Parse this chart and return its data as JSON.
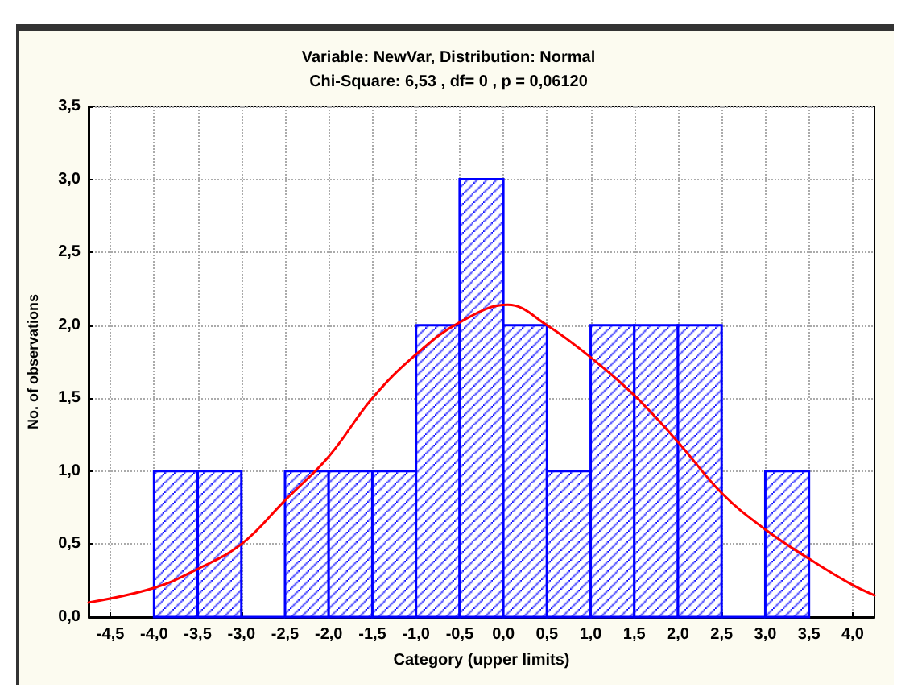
{
  "chart_data": {
    "type": "histogram",
    "title": "Variable: NewVar, Distribution: Normal",
    "subtitle": "Chi-Square: 6,53 , df= 0 , p = 0,06120",
    "xlabel": "Category (upper limits)",
    "ylabel": "No. of observations",
    "bins": [
      -4.0,
      -3.5,
      -3.0,
      -2.5,
      -2.0,
      -1.5,
      -1.0,
      -0.5,
      0.0,
      0.5,
      1.0,
      1.5,
      2.0,
      2.5,
      3.0,
      3.5
    ],
    "values": [
      1,
      1,
      0,
      1,
      1,
      1,
      2,
      3,
      2,
      1,
      2,
      2,
      2,
      0,
      1
    ],
    "color": "#0000ff",
    "series": [
      {
        "type": "line",
        "color": "#ff0000",
        "x": [
          -4.75,
          -4.0,
          -3.5,
          -3.0,
          -2.5,
          -2.0,
          -1.5,
          -1.0,
          -0.5,
          0.05,
          0.5,
          1.0,
          1.5,
          2.0,
          2.5,
          3.0,
          3.5,
          4.0,
          4.25
        ],
        "values": [
          0.1,
          0.2,
          0.33,
          0.5,
          0.8,
          1.1,
          1.5,
          1.8,
          2.02,
          2.14,
          2.0,
          1.78,
          1.52,
          1.2,
          0.85,
          0.6,
          0.4,
          0.22,
          0.15
        ]
      }
    ],
    "xlim": [
      -4.75,
      4.25
    ],
    "xticks": [
      {
        "value": -4.5,
        "label": "-4,5"
      },
      {
        "value": -4.0,
        "label": "-4,0"
      },
      {
        "value": -3.5,
        "label": "-3,5"
      },
      {
        "value": -3.0,
        "label": "-3,0"
      },
      {
        "value": -2.5,
        "label": "-2,5"
      },
      {
        "value": -2.0,
        "label": "-2,0"
      },
      {
        "value": -1.5,
        "label": "-1,5"
      },
      {
        "value": -1.0,
        "label": "-1,0"
      },
      {
        "value": -0.5,
        "label": "-0,5"
      },
      {
        "value": 0.0,
        "label": "0,0"
      },
      {
        "value": 0.5,
        "label": "0,5"
      },
      {
        "value": 1.0,
        "label": "1,0"
      },
      {
        "value": 1.5,
        "label": "1,5"
      },
      {
        "value": 2.0,
        "label": "2,0"
      },
      {
        "value": 2.5,
        "label": "2,5"
      },
      {
        "value": 3.0,
        "label": "3,0"
      },
      {
        "value": 3.5,
        "label": "3,5"
      },
      {
        "value": 4.0,
        "label": "4,0"
      }
    ],
    "ylim": [
      0,
      3.5
    ],
    "yticks": [
      {
        "value": 0,
        "label": "0,0"
      },
      {
        "value": 0.5,
        "label": "0,5"
      },
      {
        "value": 1.0,
        "label": "1,0"
      },
      {
        "value": 1.5,
        "label": "1,5"
      },
      {
        "value": 2.0,
        "label": "2,0"
      },
      {
        "value": 2.5,
        "label": "2,5"
      },
      {
        "value": 3.0,
        "label": "3,0"
      },
      {
        "value": 3.5,
        "label": "3,5"
      }
    ],
    "grid": true
  }
}
